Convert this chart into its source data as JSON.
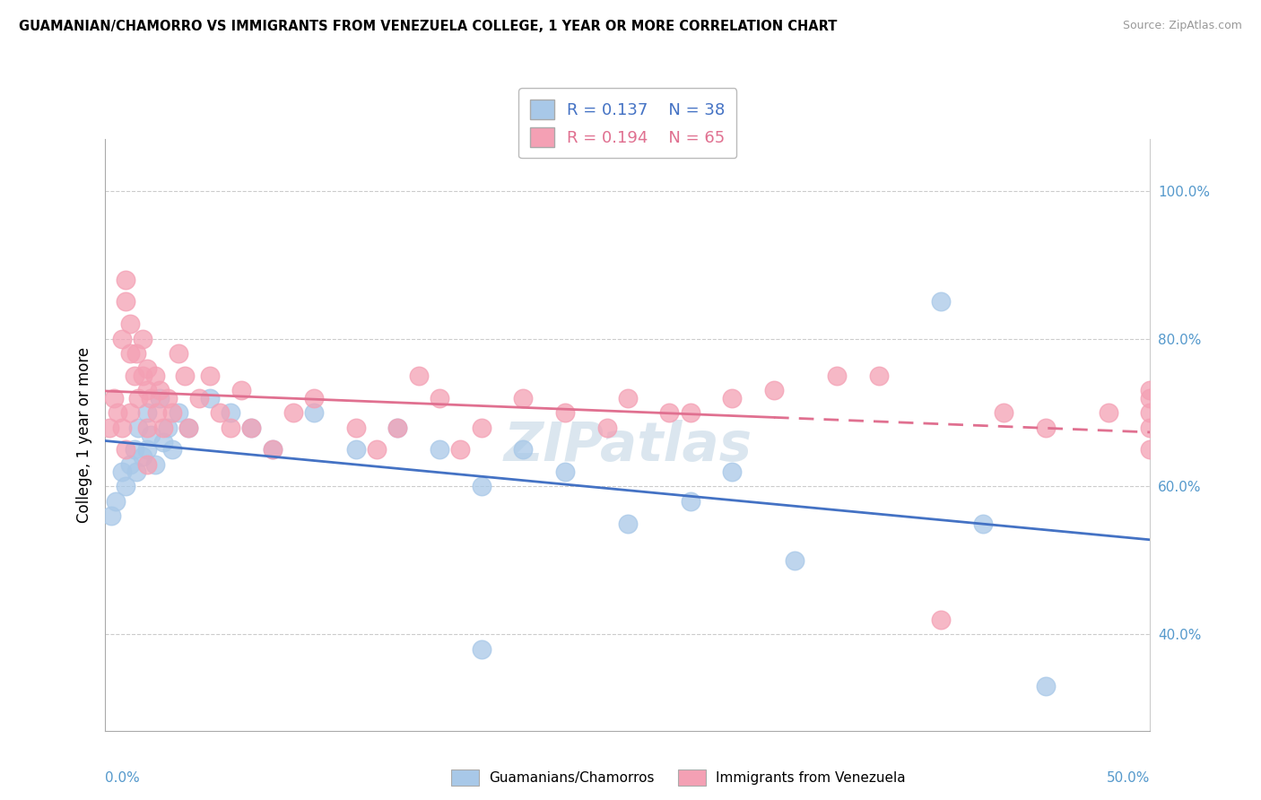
{
  "title": "GUAMANIAN/CHAMORRO VS IMMIGRANTS FROM VENEZUELA COLLEGE, 1 YEAR OR MORE CORRELATION CHART",
  "source": "Source: ZipAtlas.com",
  "ylabel": "College, 1 year or more",
  "xlim": [
    0.0,
    50.0
  ],
  "ylim": [
    27.0,
    107.0
  ],
  "yticks": [
    40.0,
    60.0,
    80.0,
    100.0
  ],
  "ytick_labels": [
    "40.0%",
    "60.0%",
    "80.0%",
    "100.0%"
  ],
  "legend_r1": "R = 0.137",
  "legend_n1": "N = 38",
  "legend_r2": "R = 0.194",
  "legend_n2": "N = 65",
  "color_blue": "#a8c8e8",
  "color_pink": "#f4a0b4",
  "line_blue": "#4472c4",
  "line_pink": "#e07090",
  "legend_text_color_blue": "#4472c4",
  "legend_text_color_pink": "#e07090",
  "watermark": "ZIPatlas",
  "blue_x": [
    0.3,
    0.5,
    0.8,
    1.0,
    1.2,
    1.4,
    1.5,
    1.6,
    1.8,
    2.0,
    2.0,
    2.2,
    2.4,
    2.6,
    2.8,
    3.0,
    3.2,
    3.5,
    4.0,
    5.0,
    6.0,
    7.0,
    8.0,
    10.0,
    12.0,
    14.0,
    16.0,
    18.0,
    20.0,
    22.0,
    25.0,
    28.0,
    30.0,
    33.0,
    40.0,
    42.0,
    45.0,
    18.0
  ],
  "blue_y": [
    56,
    58,
    62,
    60,
    63,
    65,
    62,
    68,
    64,
    70,
    65,
    67,
    63,
    72,
    66,
    68,
    65,
    70,
    68,
    72,
    70,
    68,
    65,
    70,
    65,
    68,
    65,
    60,
    65,
    62,
    55,
    58,
    62,
    50,
    85,
    55,
    33,
    38
  ],
  "pink_x": [
    0.2,
    0.4,
    0.6,
    0.8,
    1.0,
    1.0,
    1.2,
    1.2,
    1.4,
    1.5,
    1.6,
    1.8,
    1.8,
    2.0,
    2.0,
    2.0,
    2.2,
    2.4,
    2.5,
    2.6,
    2.8,
    3.0,
    3.2,
    3.5,
    3.8,
    4.0,
    4.5,
    5.0,
    5.5,
    6.0,
    6.5,
    7.0,
    8.0,
    9.0,
    10.0,
    12.0,
    13.0,
    14.0,
    15.0,
    16.0,
    17.0,
    18.0,
    20.0,
    22.0,
    24.0,
    25.0,
    27.0,
    28.0,
    30.0,
    32.0,
    35.0,
    37.0,
    40.0,
    43.0,
    45.0,
    48.0,
    50.0,
    50.0,
    50.0,
    50.0,
    50.0,
    1.0,
    1.2,
    0.8,
    2.0
  ],
  "pink_y": [
    68,
    72,
    70,
    80,
    88,
    85,
    78,
    82,
    75,
    78,
    72,
    75,
    80,
    68,
    73,
    76,
    72,
    75,
    70,
    73,
    68,
    72,
    70,
    78,
    75,
    68,
    72,
    75,
    70,
    68,
    73,
    68,
    65,
    70,
    72,
    68,
    65,
    68,
    75,
    72,
    65,
    68,
    72,
    70,
    68,
    72,
    70,
    70,
    72,
    73,
    75,
    75,
    42,
    70,
    68,
    70,
    65,
    70,
    68,
    72,
    73,
    65,
    70,
    68,
    63
  ]
}
